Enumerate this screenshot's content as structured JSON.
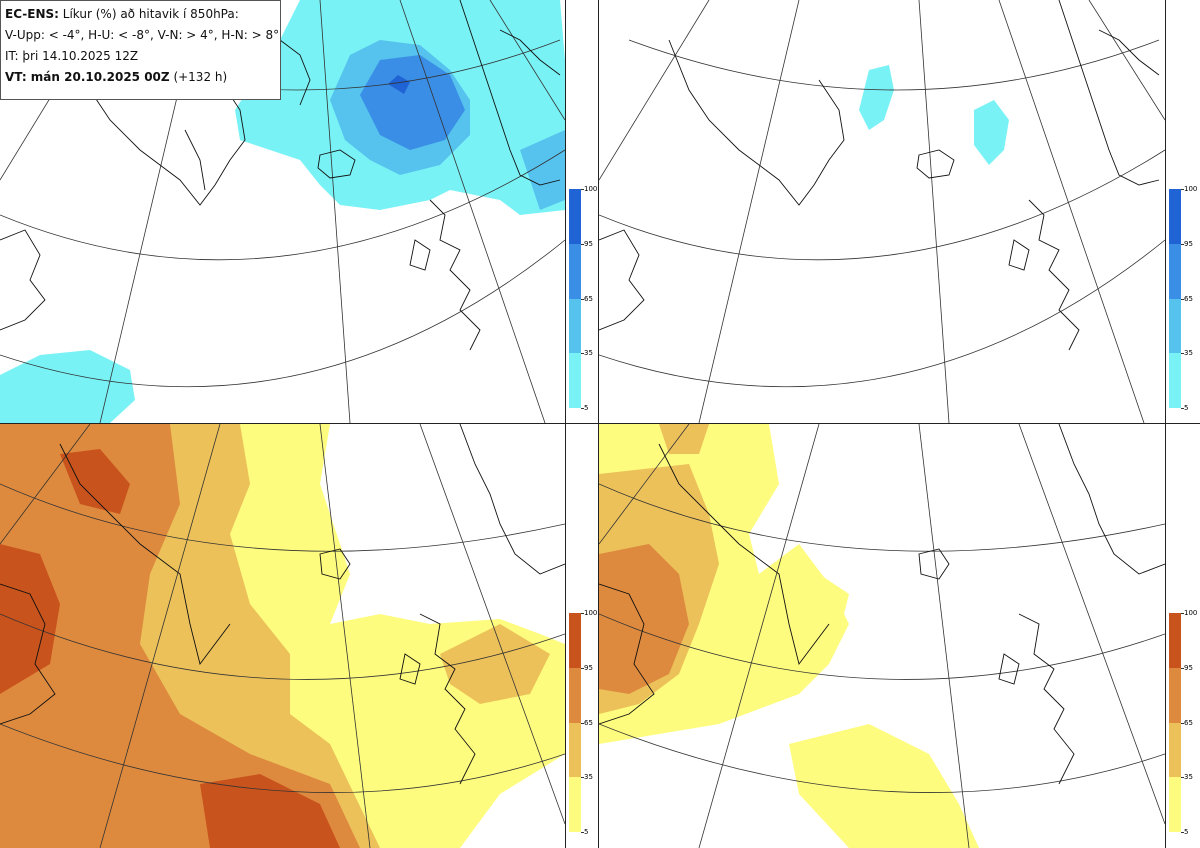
{
  "header": {
    "model": "EC-ENS:",
    "title": "Líkur (%) að hitavik í 850hPa:",
    "thresholds": "V-Upp: < -4°, H-U: < -8°, V-N: > 4°, H-N: > 8°",
    "init_time": "IT: þri 14.10.2025 12Z",
    "valid_label": "VT: mán 20.10.2025 00Z",
    "valid_offset": "(+132 h)"
  },
  "colorbars": {
    "cold": {
      "ticks": [
        "100",
        "95",
        "65",
        "35",
        "5"
      ],
      "colors": [
        "#1f63d4",
        "#3a8ee6",
        "#56c2ee",
        "#79f2f6"
      ]
    },
    "warm": {
      "ticks": [
        "100",
        "95",
        "65",
        "35",
        "5"
      ],
      "colors": [
        "#c9531d",
        "#de8a3e",
        "#ecc15a",
        "#fdfc7e"
      ]
    }
  },
  "panels": [
    {
      "id": "upper-left",
      "quantity": "V-Upp",
      "palette": "cold"
    },
    {
      "id": "upper-right",
      "quantity": "H-U",
      "palette": "cold"
    },
    {
      "id": "lower-left",
      "quantity": "V-N",
      "palette": "warm"
    },
    {
      "id": "lower-right",
      "quantity": "H-N",
      "palette": "warm"
    }
  ]
}
